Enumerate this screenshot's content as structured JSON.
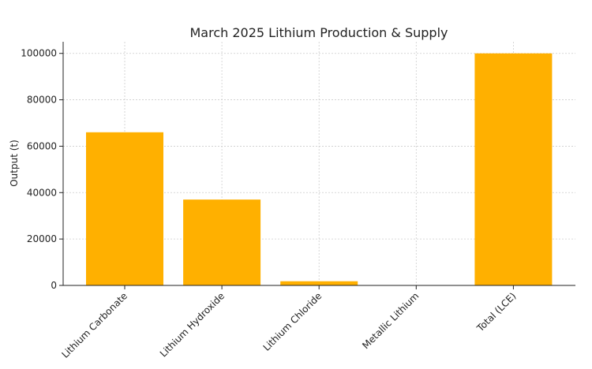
{
  "chart_data": {
    "type": "bar",
    "title": "March 2025 Lithium Production & Supply",
    "xlabel": "",
    "ylabel": "Output (t)",
    "categories": [
      "Lithium Carbonate",
      "Lithium Hydroxide",
      "Lithium Chloride",
      "Metallic Lithium",
      "Total (LCE)"
    ],
    "values": [
      66000,
      37000,
      1800,
      0,
      100000
    ],
    "ylim": [
      0,
      105000
    ],
    "yticks": [
      0,
      20000,
      40000,
      60000,
      80000,
      100000
    ],
    "grid": true,
    "bar_color": "#FFB000"
  }
}
